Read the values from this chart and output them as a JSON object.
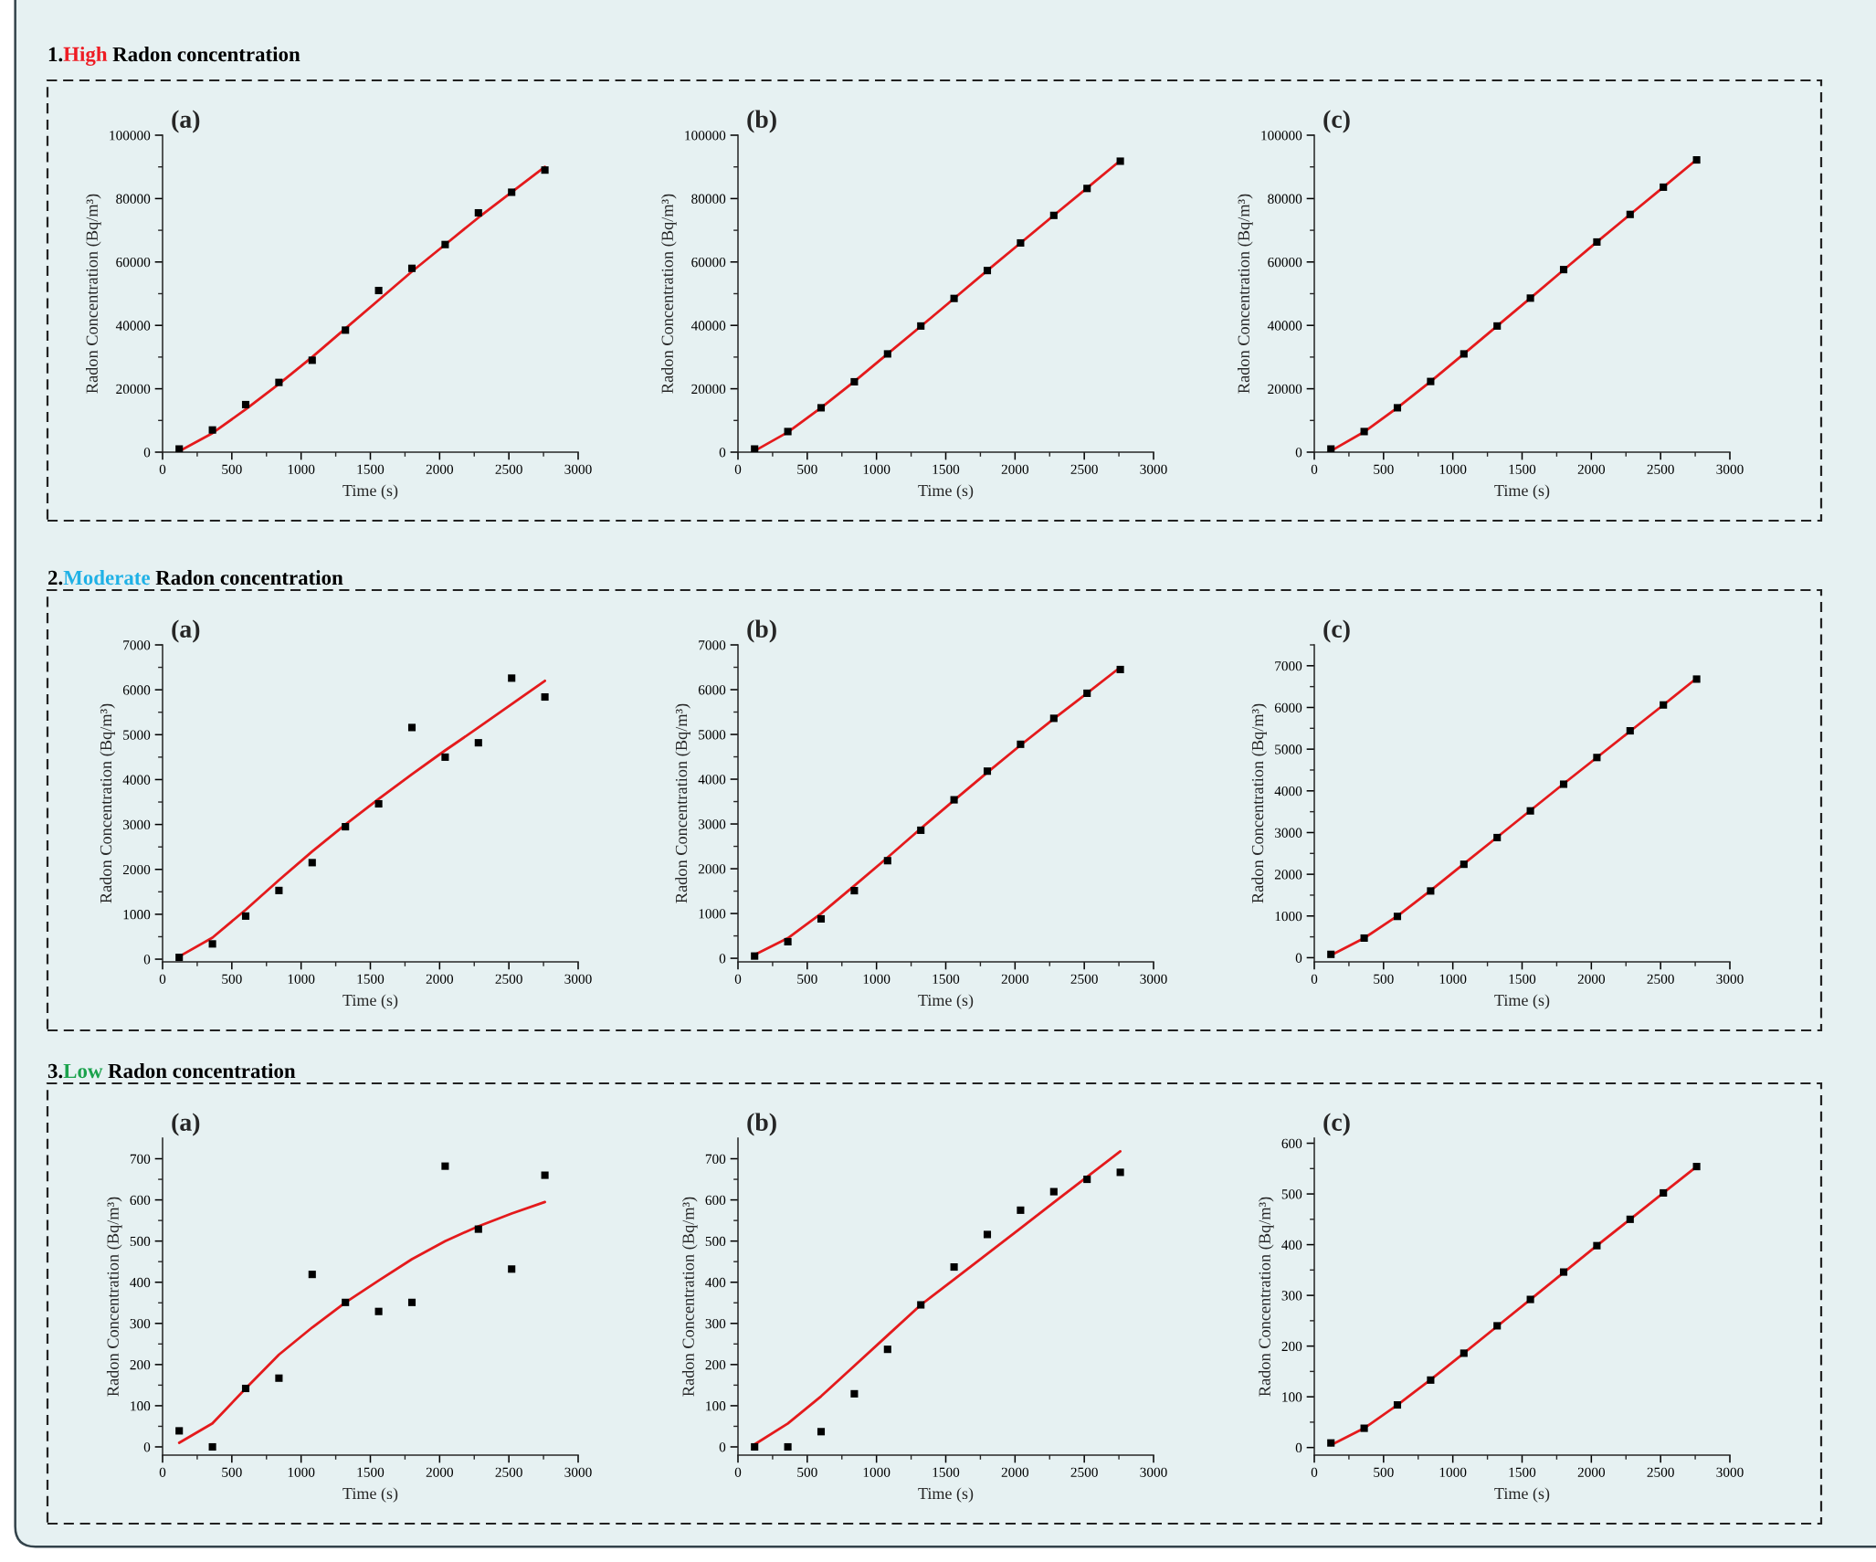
{
  "chart_data": [
    {
      "type": "scatter",
      "title": "(a)",
      "annotations": [
        "1.",
        "High",
        "Radon concentration"
      ],
      "xlabel": "Time (s)",
      "ylabel": "Radon Concentration (Bq/m³)",
      "x": [
        120,
        360,
        600,
        840,
        1080,
        1320,
        1560,
        1800,
        2040,
        2280,
        2520,
        2760
      ],
      "series": [
        {
          "marker": "square",
          "color": "#000000",
          "values": [
            1000,
            7000,
            15000,
            22000,
            29000,
            38500,
            51000,
            58000,
            65500,
            75500,
            82000,
            89000
          ]
        },
        {
          "type": "line",
          "color": "#e41a1c",
          "values": [
            300,
            6000,
            13500,
            21500,
            30000,
            39000,
            48000,
            57000,
            65500,
            74000,
            82000,
            90000
          ]
        }
      ],
      "xlim": [
        0,
        3000
      ],
      "xticks": [
        0,
        {
          "value": 250,
          "label": null
        },
        500,
        {
          "value": 750,
          "label": null
        },
        1000,
        {
          "value": 1250,
          "label": null
        },
        1500,
        {
          "value": 1750,
          "label": null
        },
        2000,
        {
          "value": 2250,
          "label": null
        },
        2500,
        {
          "value": 2750,
          "label": null
        },
        3000
      ],
      "ylim": [
        0,
        100000
      ],
      "yticks": [
        0,
        {
          "value": 10000,
          "label": null
        },
        20000,
        {
          "value": 30000,
          "label": null
        },
        40000,
        {
          "value": 50000,
          "label": null
        },
        60000,
        {
          "value": 70000,
          "label": null
        },
        80000,
        {
          "value": 90000,
          "label": null
        },
        100000
      ]
    },
    {
      "type": "scatter",
      "title": "(b)",
      "xlabel": "Time (s)",
      "ylabel": "Radon Concentration (Bq/m³)",
      "x": [
        120,
        360,
        600,
        840,
        1080,
        1320,
        1560,
        1800,
        2040,
        2280,
        2520,
        2760
      ],
      "series": [
        {
          "marker": "square",
          "color": "#000000",
          "values": [
            1000,
            6500,
            14000,
            22200,
            31000,
            39800,
            48500,
            57300,
            66000,
            74700,
            83200,
            91800
          ]
        },
        {
          "type": "line",
          "color": "#e41a1c",
          "values": [
            400,
            6300,
            14000,
            22300,
            31000,
            39700,
            48500,
            57300,
            66000,
            74700,
            83300,
            92000
          ]
        }
      ],
      "xlim": [
        0,
        3000
      ],
      "xticks": [
        0,
        {
          "value": 250,
          "label": null
        },
        500,
        {
          "value": 750,
          "label": null
        },
        1000,
        {
          "value": 1250,
          "label": null
        },
        1500,
        {
          "value": 1750,
          "label": null
        },
        2000,
        {
          "value": 2250,
          "label": null
        },
        2500,
        {
          "value": 2750,
          "label": null
        },
        3000
      ],
      "ylim": [
        0,
        100000
      ],
      "yticks": [
        0,
        {
          "value": 10000,
          "label": null
        },
        20000,
        {
          "value": 30000,
          "label": null
        },
        40000,
        {
          "value": 50000,
          "label": null
        },
        60000,
        {
          "value": 70000,
          "label": null
        },
        80000,
        {
          "value": 90000,
          "label": null
        },
        100000
      ]
    },
    {
      "type": "scatter",
      "title": "(c)",
      "xlabel": "Time (s)",
      "ylabel": "Radon Concentration (Bq/m³)",
      "x": [
        120,
        360,
        600,
        840,
        1080,
        1320,
        1560,
        1800,
        2040,
        2280,
        2520,
        2760
      ],
      "series": [
        {
          "marker": "square",
          "color": "#000000",
          "values": [
            1000,
            6500,
            14000,
            22300,
            31000,
            39800,
            48600,
            57600,
            66300,
            75000,
            83600,
            92200
          ]
        },
        {
          "type": "line",
          "color": "#e41a1c",
          "values": [
            400,
            6400,
            14000,
            22300,
            31000,
            39800,
            48600,
            57500,
            66300,
            75000,
            83600,
            92300
          ]
        }
      ],
      "xlim": [
        0,
        3000
      ],
      "xticks": [
        0,
        {
          "value": 250,
          "label": null
        },
        500,
        {
          "value": 750,
          "label": null
        },
        1000,
        {
          "value": 1250,
          "label": null
        },
        1500,
        {
          "value": 1750,
          "label": null
        },
        2000,
        {
          "value": 2250,
          "label": null
        },
        2500,
        {
          "value": 2750,
          "label": null
        },
        3000
      ],
      "ylim": [
        0,
        100000
      ],
      "yticks": [
        0,
        {
          "value": 10000,
          "label": null
        },
        20000,
        {
          "value": 30000,
          "label": null
        },
        40000,
        {
          "value": 50000,
          "label": null
        },
        60000,
        {
          "value": 70000,
          "label": null
        },
        80000,
        {
          "value": 90000,
          "label": null
        },
        100000
      ]
    },
    {
      "type": "scatter",
      "title": "(a)",
      "annotations": [
        "2.",
        "Moderate",
        "Radon concentration"
      ],
      "xlabel": "Time (s)",
      "ylabel": "Radon Concentration (Bq/m³)",
      "x": [
        120,
        360,
        600,
        840,
        1080,
        1320,
        1560,
        1800,
        2040,
        2280,
        2520,
        2760
      ],
      "series": [
        {
          "marker": "square",
          "color": "#000000",
          "values": [
            40,
            340,
            960,
            1530,
            2150,
            2950,
            3460,
            5160,
            4500,
            4820,
            6260,
            5840
          ]
        },
        {
          "type": "line",
          "color": "#e41a1c",
          "values": [
            60,
            480,
            1100,
            1760,
            2400,
            3000,
            3570,
            4120,
            4650,
            5160,
            5680,
            6200
          ]
        }
      ],
      "xlim": [
        0,
        3000
      ],
      "xticks": [
        0,
        {
          "value": 250,
          "label": null
        },
        500,
        {
          "value": 750,
          "label": null
        },
        1000,
        {
          "value": 1250,
          "label": null
        },
        1500,
        {
          "value": 1750,
          "label": null
        },
        2000,
        {
          "value": 2250,
          "label": null
        },
        2500,
        {
          "value": 2750,
          "label": null
        },
        3000
      ],
      "ylim": [
        -60,
        7000
      ],
      "yticks": [
        0,
        {
          "value": 500,
          "label": null
        },
        1000,
        {
          "value": 1500,
          "label": null
        },
        2000,
        {
          "value": 2500,
          "label": null
        },
        3000,
        {
          "value": 3500,
          "label": null
        },
        4000,
        {
          "value": 4500,
          "label": null
        },
        5000,
        {
          "value": 5500,
          "label": null
        },
        6000,
        {
          "value": 6500,
          "label": null
        },
        7000
      ]
    },
    {
      "type": "scatter",
      "title": "(b)",
      "xlabel": "Time (s)",
      "ylabel": "Radon Concentration (Bq/m³)",
      "x": [
        120,
        360,
        600,
        840,
        1080,
        1320,
        1560,
        1800,
        2040,
        2280,
        2520,
        2760
      ],
      "series": [
        {
          "marker": "square",
          "color": "#000000",
          "values": [
            50,
            370,
            880,
            1510,
            2180,
            2860,
            3540,
            4180,
            4780,
            5360,
            5920,
            6450
          ]
        },
        {
          "type": "line",
          "color": "#e41a1c",
          "values": [
            80,
            450,
            1000,
            1620,
            2250,
            2900,
            3530,
            4150,
            4760,
            5350,
            5920,
            6500
          ]
        }
      ],
      "xlim": [
        0,
        3000
      ],
      "xticks": [
        0,
        {
          "value": 250,
          "label": null
        },
        500,
        {
          "value": 750,
          "label": null
        },
        1000,
        {
          "value": 1250,
          "label": null
        },
        1500,
        {
          "value": 1750,
          "label": null
        },
        2000,
        {
          "value": 2250,
          "label": null
        },
        2500,
        {
          "value": 2750,
          "label": null
        },
        3000
      ],
      "ylim": [
        -80,
        7000
      ],
      "yticks": [
        0,
        {
          "value": 500,
          "label": null
        },
        1000,
        {
          "value": 1500,
          "label": null
        },
        2000,
        {
          "value": 2500,
          "label": null
        },
        3000,
        {
          "value": 3500,
          "label": null
        },
        4000,
        {
          "value": 4500,
          "label": null
        },
        5000,
        {
          "value": 5500,
          "label": null
        },
        6000,
        {
          "value": 6500,
          "label": null
        },
        7000
      ]
    },
    {
      "type": "scatter",
      "title": "(c)",
      "xlabel": "Time (s)",
      "ylabel": "Radon Concentration (Bq/m³)",
      "x": [
        120,
        360,
        600,
        840,
        1080,
        1320,
        1560,
        1800,
        2040,
        2280,
        2520,
        2760
      ],
      "series": [
        {
          "marker": "square",
          "color": "#000000",
          "values": [
            80,
            470,
            990,
            1600,
            2240,
            2880,
            3520,
            4160,
            4800,
            5440,
            6060,
            6680
          ]
        },
        {
          "type": "line",
          "color": "#e41a1c",
          "values": [
            60,
            470,
            1000,
            1610,
            2250,
            2890,
            3530,
            4170,
            4800,
            5430,
            6060,
            6700
          ]
        }
      ],
      "xlim": [
        0,
        3000
      ],
      "xticks": [
        0,
        {
          "value": 250,
          "label": null
        },
        500,
        {
          "value": 750,
          "label": null
        },
        1000,
        {
          "value": 1250,
          "label": null
        },
        1500,
        {
          "value": 1750,
          "label": null
        },
        2000,
        {
          "value": 2250,
          "label": null
        },
        2500,
        {
          "value": 2750,
          "label": null
        },
        3000
      ],
      "ylim": [
        -100,
        7500
      ],
      "yticks": [
        0,
        {
          "value": 500,
          "label": null
        },
        1000,
        {
          "value": 1500,
          "label": null
        },
        2000,
        {
          "value": 2500,
          "label": null
        },
        3000,
        {
          "value": 3500,
          "label": null
        },
        4000,
        {
          "value": 4500,
          "label": null
        },
        5000,
        {
          "value": 5500,
          "label": null
        },
        6000,
        {
          "value": 6500,
          "label": null
        },
        7000,
        {
          "value": 7500,
          "label": null
        }
      ]
    },
    {
      "type": "scatter",
      "title": "(a)",
      "annotations": [
        "3.",
        "Low",
        "Radon concentration"
      ],
      "xlabel": "Time (s)",
      "ylabel": "Radon Concentration (Bq/m³)",
      "x": [
        120,
        360,
        600,
        840,
        1080,
        1320,
        1560,
        1800,
        2040,
        2280,
        2520,
        2760
      ],
      "series": [
        {
          "marker": "square",
          "color": "#000000",
          "values": [
            39,
            0,
            142,
            167,
            419,
            351,
            329,
            351,
            682,
            529,
            432,
            660
          ]
        },
        {
          "type": "line",
          "color": "#e41a1c",
          "values": [
            10,
            57,
            142,
            224,
            290,
            351,
            404,
            456,
            500,
            536,
            567,
            595
          ]
        }
      ],
      "xlim": [
        0,
        3000
      ],
      "xticks": [
        0,
        {
          "value": 250,
          "label": null
        },
        500,
        {
          "value": 750,
          "label": null
        },
        1000,
        {
          "value": 1250,
          "label": null
        },
        1500,
        {
          "value": 1750,
          "label": null
        },
        2000,
        {
          "value": 2250,
          "label": null
        },
        2500,
        {
          "value": 2750,
          "label": null
        },
        3000
      ],
      "ylim": [
        -20,
        750
      ],
      "yticks": [
        0,
        {
          "value": 50,
          "label": null
        },
        100,
        {
          "value": 150,
          "label": null
        },
        200,
        {
          "value": 250,
          "label": null
        },
        300,
        {
          "value": 350,
          "label": null
        },
        400,
        {
          "value": 450,
          "label": null
        },
        500,
        {
          "value": 550,
          "label": null
        },
        600,
        {
          "value": 650,
          "label": null
        },
        700
      ]
    },
    {
      "type": "scatter",
      "title": "(b)",
      "xlabel": "Time (s)",
      "ylabel": "Radon Concentration (Bq/m³)",
      "x": [
        120,
        360,
        600,
        840,
        1080,
        1320,
        1560,
        1800,
        2040,
        2280,
        2520,
        2760
      ],
      "series": [
        {
          "marker": "square",
          "color": "#000000",
          "values": [
            0,
            0,
            37,
            129,
            237,
            345,
            437,
            516,
            575,
            620,
            650,
            667
          ]
        },
        {
          "type": "line",
          "color": "#e41a1c",
          "values": [
            6,
            57,
            123,
            197,
            271,
            345,
            407,
            469,
            531,
            594,
            656,
            718
          ]
        }
      ],
      "xlim": [
        0,
        3000
      ],
      "xticks": [
        0,
        {
          "value": 250,
          "label": null
        },
        500,
        {
          "value": 750,
          "label": null
        },
        1000,
        {
          "value": 1250,
          "label": null
        },
        1500,
        {
          "value": 1750,
          "label": null
        },
        2000,
        {
          "value": 2250,
          "label": null
        },
        2500,
        {
          "value": 2750,
          "label": null
        },
        3000
      ],
      "ylim": [
        -20,
        750
      ],
      "yticks": [
        0,
        {
          "value": 50,
          "label": null
        },
        100,
        {
          "value": 150,
          "label": null
        },
        200,
        {
          "value": 250,
          "label": null
        },
        300,
        {
          "value": 350,
          "label": null
        },
        400,
        {
          "value": 450,
          "label": null
        },
        500,
        {
          "value": 550,
          "label": null
        },
        600,
        {
          "value": 650,
          "label": null
        },
        700
      ]
    },
    {
      "type": "scatter",
      "title": "(c)",
      "xlabel": "Time (s)",
      "ylabel": "Radon Concentration (Bq/m³)",
      "x": [
        120,
        360,
        600,
        840,
        1080,
        1320,
        1560,
        1800,
        2040,
        2280,
        2520,
        2760
      ],
      "series": [
        {
          "marker": "square",
          "color": "#000000",
          "values": [
            9,
            38,
            84,
            133,
            186,
            240,
            292,
            346,
            398,
            450,
            502,
            554
          ]
        },
        {
          "type": "line",
          "color": "#e41a1c",
          "values": [
            5,
            38,
            84,
            134,
            186,
            239,
            292,
            345,
            398,
            450,
            502,
            554
          ]
        }
      ],
      "xlim": [
        0,
        3000
      ],
      "xticks": [
        0,
        {
          "value": 250,
          "label": null
        },
        500,
        {
          "value": 750,
          "label": null
        },
        1000,
        {
          "value": 1250,
          "label": null
        },
        1500,
        {
          "value": 1750,
          "label": null
        },
        2000,
        {
          "value": 2250,
          "label": null
        },
        2500,
        {
          "value": 2750,
          "label": null
        },
        3000
      ],
      "ylim": [
        -15,
        610
      ],
      "yticks": [
        0,
        {
          "value": 50,
          "label": null
        },
        100,
        {
          "value": 150,
          "label": null
        },
        200,
        {
          "value": 250,
          "label": null
        },
        300,
        {
          "value": 350,
          "label": null
        },
        400,
        {
          "value": 450,
          "label": null
        },
        500,
        {
          "value": 550,
          "label": null
        },
        600
      ]
    }
  ]
}
